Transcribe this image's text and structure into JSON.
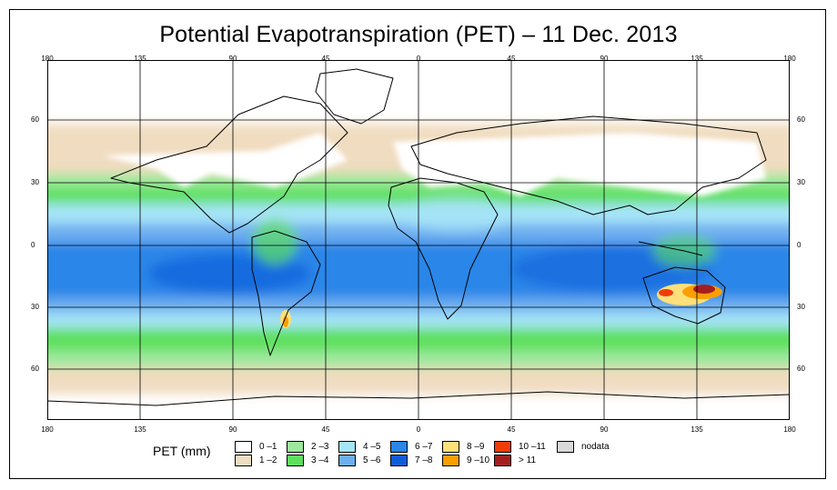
{
  "title": "Potential Evapotranspiration (PET) – 11 Dec. 2013",
  "lon_ticks": [
    "180",
    "135",
    "90",
    "45",
    "0",
    "45",
    "90",
    "135",
    "180"
  ],
  "lat_ticks": [
    "60",
    "30",
    "0",
    "30",
    "60"
  ],
  "legend": {
    "title": "PET (mm)",
    "items": [
      {
        "label": "0 –1",
        "color": "#ffffff"
      },
      {
        "label": "1 –2",
        "color": "#f0dcc0"
      },
      {
        "label": "2 –3",
        "color": "#9de89d"
      },
      {
        "label": "3 –4",
        "color": "#5ee05e"
      },
      {
        "label": "4 –5",
        "color": "#a6e4f7"
      },
      {
        "label": "5 –6",
        "color": "#6eaff0"
      },
      {
        "label": "6 –7",
        "color": "#2a86e8"
      },
      {
        "label": "7 –8",
        "color": "#0e5cd8"
      },
      {
        "label": "8 –9",
        "color": "#fde07a"
      },
      {
        "label": "9 –10",
        "color": "#fb9e00"
      },
      {
        "label": "10 –11",
        "color": "#f03c0a"
      },
      {
        "label": "> 11",
        "color": "#a41e20"
      },
      {
        "label": "nodata",
        "color": "#d9d9d9"
      }
    ]
  }
}
